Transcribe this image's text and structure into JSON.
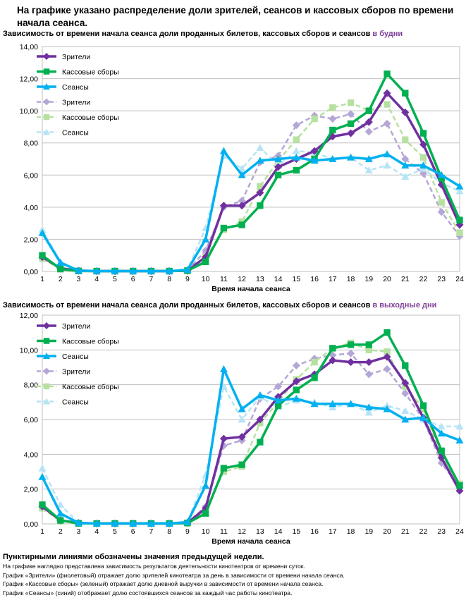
{
  "header": {
    "title": "На графике указано распределение доли зрителей, сеансов и кассовых сборов по времени начала сеанса."
  },
  "colors": {
    "viewers": "#7030a0",
    "boxoffice": "#00b050",
    "sessions": "#00b0f0",
    "viewers_prev": "#b4a7d6",
    "boxoffice_prev": "#b7e1a1",
    "sessions_prev": "#b7e4f5",
    "grid": "#bfbfbf"
  },
  "chart_data": [
    {
      "type": "line",
      "title_main": "Зависимость от времени начала сеанса доли проданных билетов, кассовых сборов и сеансов ",
      "title_highlight": "в будни",
      "xlabel": "Время начала сеанса",
      "ylabel": "",
      "ylim": [
        0,
        14
      ],
      "yticks": [
        "0,00",
        "2,00",
        "4,00",
        "6,00",
        "8,00",
        "10,00",
        "12,00",
        "14,00"
      ],
      "categories": [
        "1",
        "2",
        "3",
        "4",
        "5",
        "6",
        "7",
        "8",
        "9",
        "10",
        "11",
        "12",
        "13",
        "14",
        "15",
        "16",
        "17",
        "18",
        "19",
        "20",
        "21",
        "22",
        "23",
        "24"
      ],
      "grid": true,
      "legend_position": "top-left",
      "series": [
        {
          "name": "Зрители",
          "style": "solid",
          "marker": "diamond",
          "color_key": "viewers",
          "values": [
            0.9,
            0.2,
            0.05,
            0.02,
            0.02,
            0.02,
            0.02,
            0.02,
            0.05,
            0.9,
            4.1,
            4.1,
            4.9,
            6.5,
            7.0,
            7.5,
            8.4,
            8.6,
            9.3,
            11.1,
            9.9,
            7.9,
            5.4,
            2.9
          ]
        },
        {
          "name": "Кассовые сборы",
          "style": "solid",
          "marker": "square",
          "color_key": "boxoffice",
          "values": [
            1.0,
            0.15,
            0.03,
            0.02,
            0.02,
            0.02,
            0.02,
            0.02,
            0.05,
            0.6,
            2.7,
            2.9,
            4.1,
            6.0,
            6.3,
            7.0,
            8.8,
            9.2,
            10.0,
            12.3,
            11.1,
            8.6,
            5.8,
            3.2
          ]
        },
        {
          "name": "Сеансы",
          "style": "solid",
          "marker": "triangle",
          "color_key": "sessions",
          "values": [
            2.4,
            0.55,
            0.05,
            0.02,
            0.02,
            0.02,
            0.02,
            0.02,
            0.1,
            2.0,
            7.5,
            6.0,
            6.9,
            7.0,
            7.1,
            6.9,
            7.0,
            7.1,
            7.0,
            7.3,
            6.6,
            6.6,
            6.0,
            5.3
          ]
        },
        {
          "name": "Зрители",
          "style": "dashed",
          "marker": "diamond",
          "color_key": "viewers_prev",
          "values": [
            0.8,
            0.2,
            0.05,
            0.02,
            0.02,
            0.02,
            0.02,
            0.02,
            0.05,
            1.3,
            4.0,
            4.4,
            6.8,
            7.2,
            9.1,
            9.7,
            9.5,
            9.8,
            8.7,
            9.2,
            7.0,
            6.1,
            3.7,
            2.2
          ]
        },
        {
          "name": "Кассовые сборы",
          "style": "dashed",
          "marker": "square",
          "color_key": "boxoffice_prev",
          "values": [
            0.8,
            0.15,
            0.03,
            0.02,
            0.02,
            0.02,
            0.02,
            0.02,
            0.05,
            0.9,
            2.6,
            3.1,
            5.3,
            6.9,
            8.2,
            9.5,
            10.2,
            10.5,
            10.0,
            10.4,
            8.2,
            7.1,
            4.3,
            2.4
          ]
        },
        {
          "name": "Сеансы",
          "style": "dashed",
          "marker": "triangle",
          "color_key": "sessions_prev",
          "values": [
            2.6,
            0.6,
            0.05,
            0.02,
            0.02,
            0.02,
            0.02,
            0.02,
            0.1,
            2.7,
            7.2,
            6.4,
            7.7,
            6.6,
            7.5,
            7.4,
            7.0,
            7.1,
            6.3,
            6.6,
            5.9,
            6.4,
            5.5,
            5.0
          ]
        }
      ]
    },
    {
      "type": "line",
      "title_main": "Зависимость от времени начала сеанса доли проданных билетов, кассовых сборов и сеансов ",
      "title_highlight": "в выходные дни",
      "xlabel": "Время начала сеанса",
      "ylabel": "",
      "ylim": [
        0,
        12
      ],
      "yticks": [
        "0,00",
        "2,00",
        "4,00",
        "6,00",
        "8,00",
        "10,00",
        "12,00"
      ],
      "categories": [
        "1",
        "2",
        "3",
        "4",
        "5",
        "6",
        "7",
        "8",
        "9",
        "10",
        "11",
        "12",
        "13",
        "14",
        "15",
        "16",
        "17",
        "18",
        "19",
        "20",
        "21",
        "22",
        "23",
        "24"
      ],
      "grid": true,
      "legend_position": "top-left",
      "series": [
        {
          "name": "Зрители",
          "style": "solid",
          "marker": "diamond",
          "color_key": "viewers",
          "values": [
            1.0,
            0.2,
            0.05,
            0.02,
            0.02,
            0.02,
            0.02,
            0.02,
            0.05,
            0.9,
            4.9,
            5.0,
            6.0,
            7.3,
            8.2,
            8.6,
            9.4,
            9.3,
            9.3,
            9.6,
            8.1,
            6.1,
            3.8,
            1.9
          ]
        },
        {
          "name": "Кассовые сборы",
          "style": "solid",
          "marker": "square",
          "color_key": "boxoffice",
          "values": [
            1.1,
            0.2,
            0.03,
            0.02,
            0.02,
            0.02,
            0.02,
            0.02,
            0.05,
            0.6,
            3.2,
            3.4,
            4.7,
            6.8,
            7.7,
            8.4,
            10.1,
            10.3,
            10.3,
            11.0,
            9.1,
            6.8,
            4.2,
            2.2
          ]
        },
        {
          "name": "Сеансы",
          "style": "solid",
          "marker": "triangle",
          "color_key": "sessions",
          "values": [
            2.7,
            0.6,
            0.05,
            0.02,
            0.02,
            0.02,
            0.02,
            0.02,
            0.1,
            2.2,
            8.9,
            6.6,
            7.4,
            7.1,
            7.2,
            6.9,
            6.9,
            6.9,
            6.7,
            6.6,
            6.0,
            6.1,
            5.2,
            4.8
          ]
        },
        {
          "name": "Зрители",
          "style": "dashed",
          "marker": "diamond",
          "color_key": "viewers_prev",
          "values": [
            0.9,
            0.2,
            0.05,
            0.02,
            0.02,
            0.02,
            0.02,
            0.02,
            0.05,
            1.0,
            4.5,
            4.8,
            7.2,
            7.9,
            9.1,
            9.5,
            9.7,
            9.8,
            8.6,
            8.9,
            7.5,
            6.0,
            3.5,
            2.1
          ]
        },
        {
          "name": "Кассовые сборы",
          "style": "dashed",
          "marker": "square",
          "color_key": "boxoffice_prev",
          "values": [
            0.9,
            0.15,
            0.03,
            0.02,
            0.02,
            0.02,
            0.02,
            0.02,
            0.05,
            0.8,
            3.0,
            3.3,
            5.8,
            7.0,
            8.3,
            9.3,
            10.1,
            10.4,
            10.0,
            9.9,
            7.9,
            6.6,
            3.9,
            2.3
          ]
        },
        {
          "name": "Сеансы",
          "style": "dashed",
          "marker": "triangle",
          "color_key": "sessions_prev",
          "values": [
            3.2,
            1.1,
            0.05,
            0.02,
            0.02,
            0.02,
            0.02,
            0.02,
            0.1,
            2.8,
            7.9,
            6.0,
            7.3,
            6.7,
            7.1,
            7.0,
            6.7,
            6.9,
            6.4,
            6.8,
            6.5,
            6.0,
            5.6,
            5.6
          ]
        }
      ]
    }
  ],
  "notes": {
    "bold_line": "Пунктирными линиями обозначены значения предыдущей недели.",
    "lines": [
      "На графике наглядно представлена зависимость результатов деятельности кинотеатров от времени суток.",
      "График «Зрители» (фиолетовый)  отражает долю зрителей кинотеатра за день в зависимости от времени  начала сеанса.",
      "График «Кассовые сборы» (зеленый) отражает долю дневной выручки в зависимости от времени начала сеанса.",
      "График «Сеансы» (синий) отображает долю состоявшихся сеансов  за каждый час работы кинотеатра."
    ]
  }
}
